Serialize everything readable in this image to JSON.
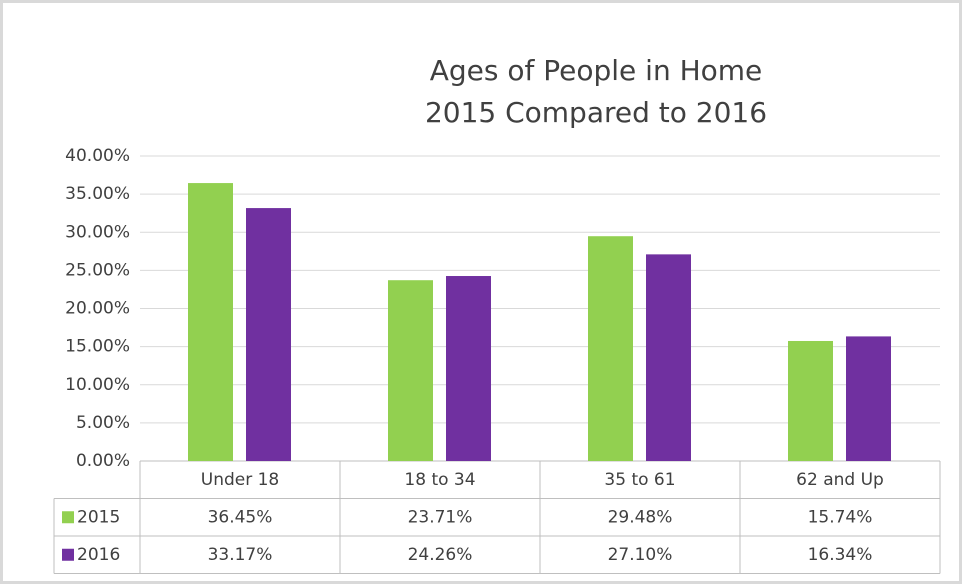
{
  "chart_data": {
    "type": "bar",
    "title": "Ages of People in Home",
    "subtitle": "2015 Compared to 2016",
    "categories": [
      "Under 18",
      "18 to 34",
      "35 to 61",
      "62 and Up"
    ],
    "series": [
      {
        "name": "2015",
        "color": "#92d050",
        "values": [
          36.45,
          23.71,
          29.48,
          15.74
        ],
        "value_labels": [
          "36.45%",
          "23.71%",
          "29.48%",
          "15.74%"
        ]
      },
      {
        "name": "2016",
        "color": "#7030a0",
        "values": [
          33.17,
          24.26,
          27.1,
          16.34
        ],
        "value_labels": [
          "33.17%",
          "24.26%",
          "27.10%",
          "16.34%"
        ]
      }
    ],
    "ylim": [
      0,
      40
    ],
    "yticks": [
      {
        "value": 0,
        "label": "0.00%"
      },
      {
        "value": 5,
        "label": "5.00%"
      },
      {
        "value": 10,
        "label": "10.00%"
      },
      {
        "value": 15,
        "label": "15.00%"
      },
      {
        "value": 20,
        "label": "20.00%"
      },
      {
        "value": 25,
        "label": "25.00%"
      },
      {
        "value": 30,
        "label": "30.00%"
      },
      {
        "value": 35,
        "label": "35.00%"
      },
      {
        "value": 40,
        "label": "40.00%"
      }
    ],
    "grid": true
  }
}
